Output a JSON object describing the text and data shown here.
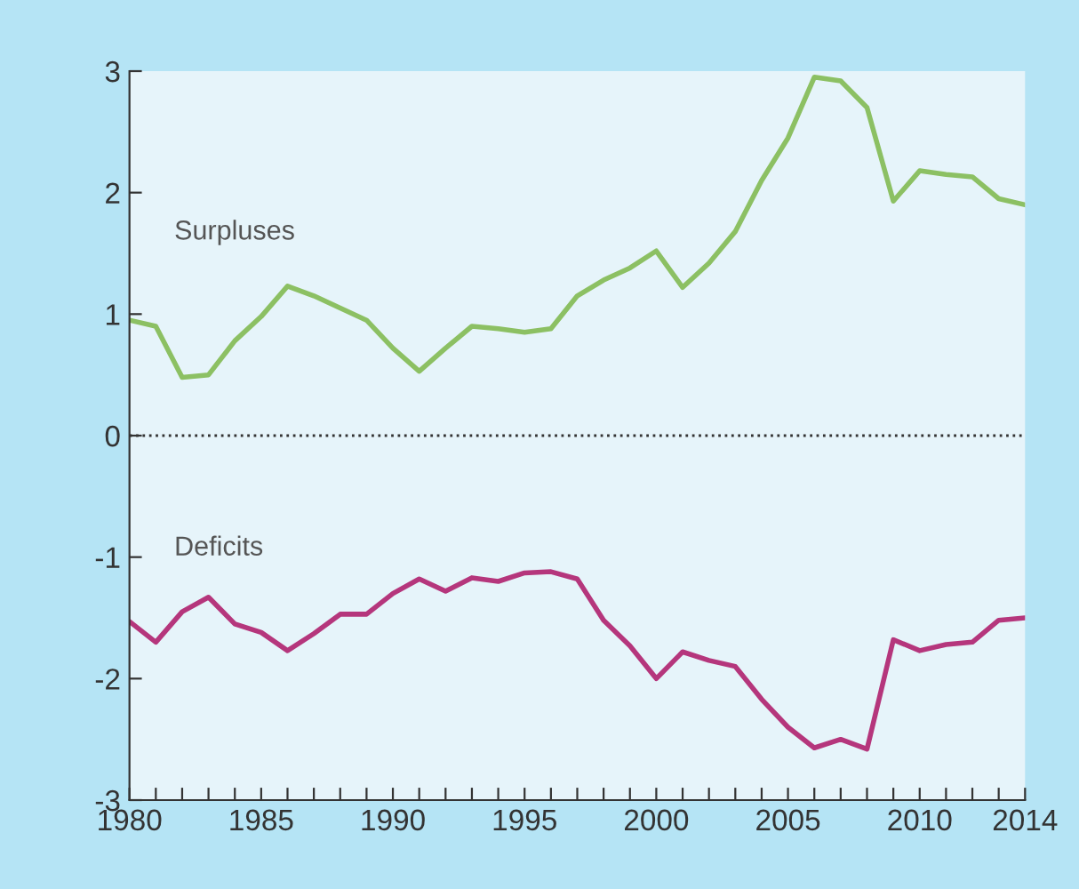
{
  "chart_data": {
    "type": "line",
    "x": [
      1980,
      1981,
      1982,
      1983,
      1984,
      1985,
      1986,
      1987,
      1988,
      1989,
      1990,
      1991,
      1992,
      1993,
      1994,
      1995,
      1996,
      1997,
      1998,
      1999,
      2000,
      2001,
      2002,
      2003,
      2004,
      2005,
      2006,
      2007,
      2008,
      2009,
      2010,
      2011,
      2012,
      2013,
      2014
    ],
    "series": [
      {
        "name": "Surpluses",
        "color": "#8cc063",
        "values": [
          0.95,
          0.9,
          0.48,
          0.5,
          0.78,
          0.98,
          1.23,
          1.15,
          1.05,
          0.95,
          0.72,
          0.53,
          0.72,
          0.9,
          0.88,
          0.85,
          0.88,
          1.15,
          1.28,
          1.38,
          1.52,
          1.22,
          1.42,
          1.68,
          2.1,
          2.45,
          2.95,
          2.92,
          2.7,
          1.93,
          2.18,
          2.15,
          2.13,
          1.95,
          1.9
        ]
      },
      {
        "name": "Deficits",
        "color": "#b5367c",
        "values": [
          -1.53,
          -1.7,
          -1.45,
          -1.33,
          -1.55,
          -1.62,
          -1.77,
          -1.63,
          -1.47,
          -1.47,
          -1.3,
          -1.18,
          -1.28,
          -1.17,
          -1.2,
          -1.13,
          -1.12,
          -1.18,
          -1.52,
          -1.73,
          -2.0,
          -1.78,
          -1.85,
          -1.9,
          -2.17,
          -2.4,
          -2.57,
          -2.5,
          -2.58,
          -1.68,
          -1.77,
          -1.72,
          -1.7,
          -1.52,
          -1.5
        ]
      }
    ],
    "xlim": [
      1980,
      2014
    ],
    "ylim": [
      -3,
      3
    ],
    "xticks": [
      1980,
      {
        "value": 1981,
        "label": null
      },
      {
        "value": 1982,
        "label": null
      },
      {
        "value": 1983,
        "label": null
      },
      {
        "value": 1984,
        "label": null
      },
      1985,
      {
        "value": 1986,
        "label": null
      },
      {
        "value": 1987,
        "label": null
      },
      {
        "value": 1988,
        "label": null
      },
      {
        "value": 1989,
        "label": null
      },
      1990,
      {
        "value": 1991,
        "label": null
      },
      {
        "value": 1992,
        "label": null
      },
      {
        "value": 1993,
        "label": null
      },
      {
        "value": 1994,
        "label": null
      },
      1995,
      {
        "value": 1996,
        "label": null
      },
      {
        "value": 1997,
        "label": null
      },
      {
        "value": 1998,
        "label": null
      },
      {
        "value": 1999,
        "label": null
      },
      2000,
      {
        "value": 2001,
        "label": null
      },
      {
        "value": 2002,
        "label": null
      },
      {
        "value": 2003,
        "label": null
      },
      {
        "value": 2004,
        "label": null
      },
      2005,
      {
        "value": 2006,
        "label": null
      },
      {
        "value": 2007,
        "label": null
      },
      {
        "value": 2008,
        "label": null
      },
      {
        "value": 2009,
        "label": null
      },
      2010,
      {
        "value": 2011,
        "label": null
      },
      {
        "value": 2012,
        "label": null
      },
      {
        "value": 2013,
        "label": null
      },
      2014
    ],
    "yticks": [
      -3,
      -2,
      -1,
      0,
      1,
      2,
      3
    ],
    "ref_lines": [
      {
        "axis": "y",
        "value": 0,
        "color": "#333333",
        "line_style": "dotted"
      }
    ],
    "grid": false,
    "legend": false,
    "marker": "none",
    "line_style": "solid"
  }
}
